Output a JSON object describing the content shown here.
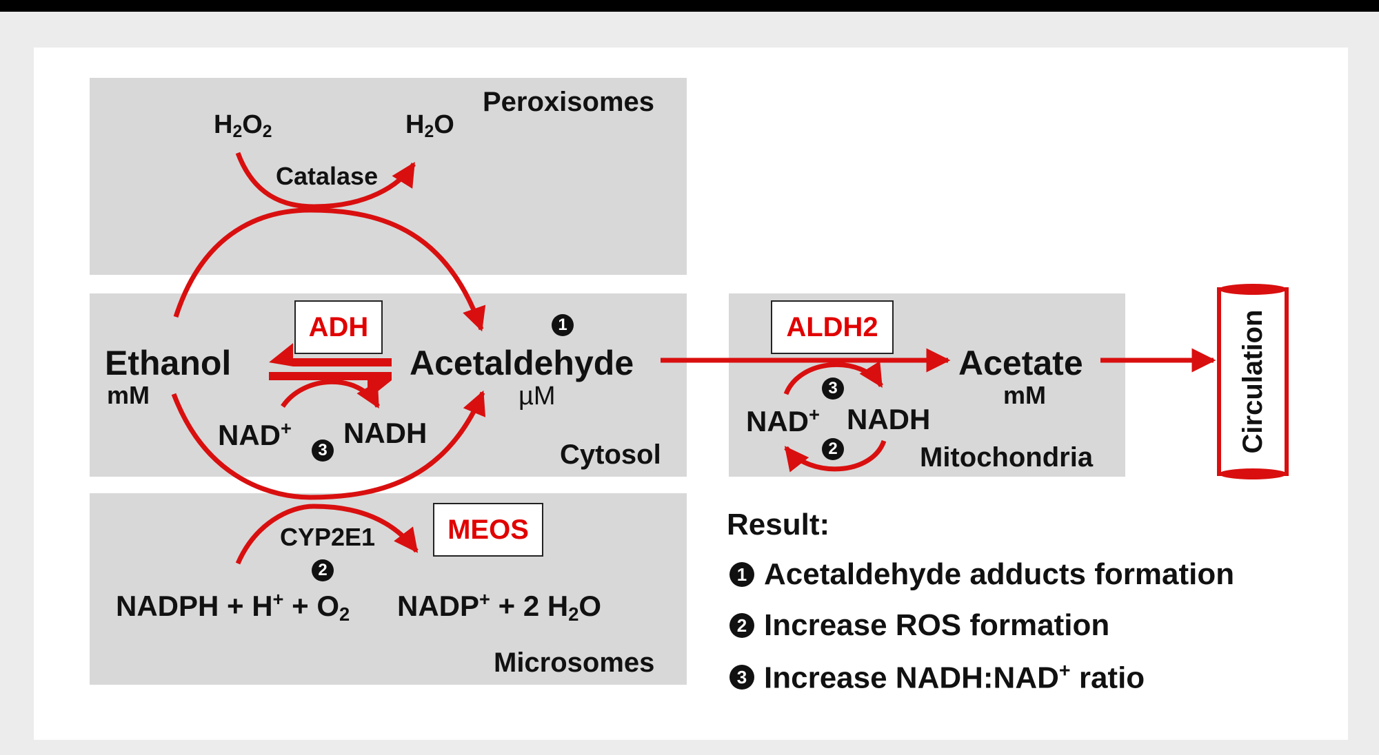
{
  "compartments": {
    "peroxisomes": "Peroxisomes",
    "cytosol": "Cytosol",
    "microsomes": "Microsomes",
    "mitochondria": "Mitochondria"
  },
  "enzymes": {
    "adh": "ADH",
    "aldh2": "ALDH2",
    "meos": "MEOS",
    "catalase": "Catalase",
    "cyp2e1": "CYP2E1"
  },
  "metabolites": {
    "ethanol": "Ethanol",
    "ethanol_conc": "mM",
    "acetaldehyde": "Acetaldehyde",
    "acetaldehyde_conc": "µM",
    "acetate": "Acetate",
    "acetate_conc": "mM",
    "circulation": "Circulation"
  },
  "cofactors": {
    "h2o2": {
      "base": "H",
      "sub1": "2",
      "mid": "O",
      "sub2": "2"
    },
    "h2o": {
      "base": "H",
      "sub1": "2",
      "mid": "O"
    },
    "nad": {
      "base": "NAD",
      "sup": "+"
    },
    "nadh": "NADH",
    "mito_nad": {
      "base": "NAD",
      "sup": "+"
    },
    "mito_nadh": "NADH",
    "nadph_reactants": {
      "a": "NADPH + H",
      "sup": "+",
      "b": " + O",
      "sub": "2"
    },
    "nadp_products": {
      "a": "NADP",
      "sup": "+",
      "b": " + 2 H",
      "sub": "2",
      "c": "O"
    }
  },
  "markers": {
    "one": "1",
    "two": "2",
    "three": "3"
  },
  "result": {
    "heading": "Result:",
    "items": [
      {
        "marker": "1",
        "text": "Acetaldehyde adducts formation"
      },
      {
        "marker": "2",
        "text": "Increase ROS formation"
      },
      {
        "marker": "3",
        "text_a": "Increase NADH:NAD",
        "sup": "+",
        "text_b": " ratio"
      }
    ]
  },
  "colors": {
    "arrow": "#d90f0f",
    "enzyme_text": "#e10000",
    "compartment_bg": "#d8d8d8"
  }
}
